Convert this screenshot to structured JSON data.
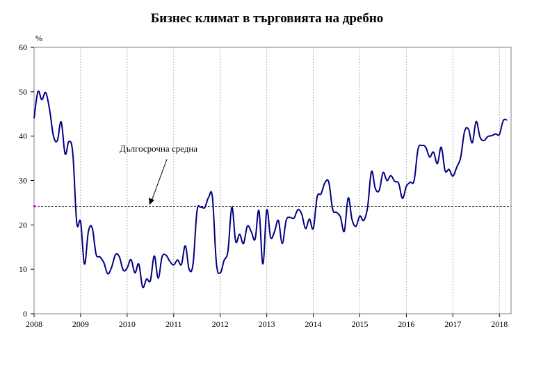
{
  "chart_data": {
    "type": "line",
    "title": "Бизнес климат в търговията на дребно",
    "ylabel": "%",
    "xlabel": "",
    "ylim": [
      0,
      60
    ],
    "y_ticks": [
      "0",
      "10",
      "20",
      "30",
      "40",
      "50",
      "60"
    ],
    "x_ticks": [
      "2008",
      "2009",
      "2010",
      "2011",
      "2012",
      "2013",
      "2014",
      "2015",
      "2016",
      "2017",
      "2018"
    ],
    "xlim": [
      2008.0,
      2018.25
    ],
    "grid": "vertical dotted at years",
    "series": [
      {
        "color": "#000080",
        "x": [
          2008.0,
          2008.083,
          2008.167,
          2008.25,
          2008.333,
          2008.417,
          2008.5,
          2008.583,
          2008.667,
          2008.75,
          2008.833,
          2008.917,
          2009.0,
          2009.083,
          2009.167,
          2009.25,
          2009.333,
          2009.417,
          2009.5,
          2009.583,
          2009.667,
          2009.75,
          2009.833,
          2009.917,
          2010.0,
          2010.083,
          2010.167,
          2010.25,
          2010.333,
          2010.417,
          2010.5,
          2010.583,
          2010.667,
          2010.75,
          2010.833,
          2010.917,
          2011.0,
          2011.083,
          2011.167,
          2011.25,
          2011.333,
          2011.417,
          2011.5,
          2011.583,
          2011.667,
          2011.75,
          2011.833,
          2011.917,
          2012.0,
          2012.083,
          2012.167,
          2012.25,
          2012.333,
          2012.417,
          2012.5,
          2012.583,
          2012.667,
          2012.75,
          2012.833,
          2012.917,
          2013.0,
          2013.083,
          2013.167,
          2013.25,
          2013.333,
          2013.417,
          2013.5,
          2013.583,
          2013.667,
          2013.75,
          2013.833,
          2013.917,
          2014.0,
          2014.083,
          2014.167,
          2014.25,
          2014.333,
          2014.417,
          2014.5,
          2014.583,
          2014.667,
          2014.75,
          2014.833,
          2014.917,
          2015.0,
          2015.083,
          2015.167,
          2015.25,
          2015.333,
          2015.417,
          2015.5,
          2015.583,
          2015.667,
          2015.75,
          2015.833,
          2015.917,
          2016.0,
          2016.083,
          2016.167,
          2016.25,
          2016.333,
          2016.417,
          2016.5,
          2016.583,
          2016.667,
          2016.75,
          2016.833,
          2016.917,
          2017.0,
          2017.083,
          2017.167,
          2017.25,
          2017.333,
          2017.417,
          2017.5,
          2017.583,
          2017.667,
          2017.75,
          2017.833,
          2017.917,
          2018.0,
          2018.083,
          2018.167
        ],
        "values": [
          44.0,
          50.0,
          48.2,
          49.8,
          46.0,
          40.0,
          39.0,
          43.2,
          36.0,
          38.8,
          36.0,
          20.5,
          20.7,
          11.2,
          18.5,
          19.3,
          13.4,
          12.8,
          11.5,
          9.0,
          10.5,
          13.3,
          12.8,
          9.8,
          10.3,
          12.2,
          9.2,
          11.2,
          6.0,
          7.8,
          7.5,
          13.0,
          8.0,
          12.8,
          13.2,
          11.8,
          11.0,
          12.1,
          11.1,
          15.3,
          10.0,
          11.3,
          23.0,
          24.0,
          23.9,
          26.2,
          26.2,
          11.5,
          9.2,
          12.0,
          14.2,
          24.0,
          16.3,
          17.9,
          15.8,
          19.7,
          18.5,
          16.8,
          23.2,
          11.2,
          23.3,
          17.2,
          18.5,
          21.0,
          15.8,
          21.0,
          21.7,
          21.5,
          23.4,
          22.5,
          19.2,
          21.3,
          19.2,
          26.3,
          27.0,
          29.5,
          29.6,
          23.5,
          22.8,
          21.8,
          18.6,
          26.1,
          21.2,
          19.7,
          22.0,
          21.0,
          24.0,
          32.0,
          28.2,
          27.8,
          31.8,
          30.0,
          31.1,
          29.8,
          29.4,
          26.0,
          28.7,
          29.6,
          30.0,
          37.0,
          37.9,
          37.5,
          35.3,
          36.4,
          33.8,
          37.5,
          32.2,
          32.5,
          31.0,
          33.0,
          35.2,
          41.0,
          41.6,
          38.5,
          43.3,
          39.8,
          39.0,
          39.9,
          40.1,
          40.5,
          40.4,
          43.5,
          43.6
        ]
      }
    ],
    "reference_line": {
      "value": 24.2,
      "label": "Дългосрочна средна",
      "style": "dashed"
    }
  }
}
